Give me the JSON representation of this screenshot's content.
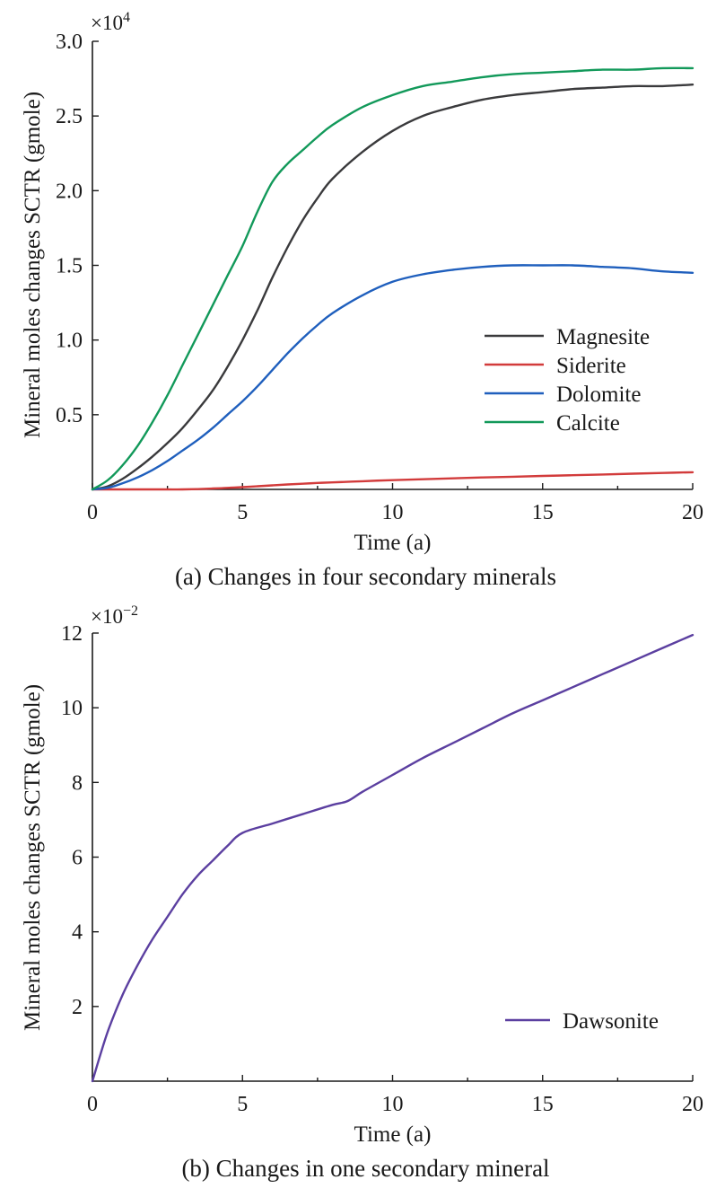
{
  "chart_data": [
    {
      "type": "line",
      "caption": "(a) Changes in four secondary minerals",
      "xlabel": "Time (a)",
      "ylabel": "Mineral moles changes SCTR (gmole)",
      "xlim": [
        0,
        20
      ],
      "ylim": [
        0,
        3.0
      ],
      "x_ticks": [
        "0",
        "5",
        "10",
        "15",
        "20"
      ],
      "y_ticks": [
        "0.5",
        "1.0",
        "1.5",
        "2.0",
        "2.5",
        "3.0"
      ],
      "y_multiplier": {
        "base": "×10",
        "exponent": "4"
      },
      "x": [
        0,
        0.5,
        1,
        1.5,
        2,
        2.5,
        3,
        3.5,
        4,
        4.5,
        5,
        5.5,
        6,
        6.5,
        7,
        7.5,
        8,
        9,
        10,
        11,
        12,
        13,
        14,
        15,
        16,
        17,
        18,
        19,
        20
      ],
      "series": [
        {
          "name": "Magnesite",
          "color": "#3a3a3c",
          "values": [
            0,
            0.02,
            0.07,
            0.14,
            0.22,
            0.31,
            0.41,
            0.53,
            0.66,
            0.82,
            1.0,
            1.2,
            1.42,
            1.62,
            1.8,
            1.95,
            2.08,
            2.26,
            2.4,
            2.5,
            2.56,
            2.61,
            2.64,
            2.66,
            2.68,
            2.69,
            2.7,
            2.7,
            2.71
          ]
        },
        {
          "name": "Siderite",
          "color": "#d23b3b",
          "values": [
            0,
            0,
            0,
            0,
            0,
            0,
            0,
            0.002,
            0.006,
            0.01,
            0.015,
            0.021,
            0.027,
            0.033,
            0.038,
            0.043,
            0.047,
            0.055,
            0.062,
            0.068,
            0.074,
            0.08,
            0.085,
            0.09,
            0.095,
            0.1,
            0.105,
            0.11,
            0.115
          ]
        },
        {
          "name": "Dolomite",
          "color": "#1f5fbd",
          "values": [
            0,
            0.01,
            0.04,
            0.08,
            0.13,
            0.19,
            0.26,
            0.33,
            0.41,
            0.5,
            0.59,
            0.69,
            0.8,
            0.91,
            1.01,
            1.1,
            1.18,
            1.3,
            1.39,
            1.44,
            1.47,
            1.49,
            1.5,
            1.5,
            1.5,
            1.49,
            1.48,
            1.46,
            1.45
          ]
        },
        {
          "name": "Calcite",
          "color": "#12995a",
          "values": [
            0,
            0.06,
            0.16,
            0.29,
            0.45,
            0.63,
            0.83,
            1.03,
            1.23,
            1.43,
            1.63,
            1.86,
            2.06,
            2.18,
            2.27,
            2.36,
            2.44,
            2.56,
            2.64,
            2.7,
            2.73,
            2.76,
            2.78,
            2.79,
            2.8,
            2.81,
            2.81,
            2.82,
            2.82
          ]
        }
      ]
    },
    {
      "type": "line",
      "caption": "(b) Changes in one secondary mineral",
      "xlabel": "Time (a)",
      "ylabel": "Mineral moles changes SCTR (gmole)",
      "xlim": [
        0,
        20
      ],
      "ylim": [
        0,
        12
      ],
      "x_ticks": [
        "0",
        "5",
        "10",
        "15",
        "20"
      ],
      "y_ticks": [
        "2",
        "4",
        "6",
        "8",
        "10",
        "12"
      ],
      "y_multiplier": {
        "base": "×10",
        "exponent": "−2"
      },
      "x": [
        0,
        0.5,
        1,
        1.5,
        2,
        2.5,
        3,
        3.5,
        4,
        4.5,
        5,
        6,
        7,
        8,
        8.5,
        9,
        10,
        11,
        12,
        13,
        14,
        15,
        16,
        17,
        18,
        19,
        20
      ],
      "series": [
        {
          "name": "Dawsonite",
          "color": "#5b3fa0",
          "values": [
            0,
            1.3,
            2.3,
            3.1,
            3.8,
            4.4,
            5.0,
            5.5,
            5.9,
            6.3,
            6.65,
            6.9,
            7.15,
            7.4,
            7.5,
            7.75,
            8.2,
            8.65,
            9.05,
            9.45,
            9.85,
            10.2,
            10.55,
            10.9,
            11.25,
            11.6,
            11.95
          ]
        }
      ]
    }
  ]
}
